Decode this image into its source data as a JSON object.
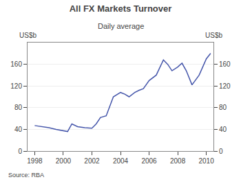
{
  "chart_data": {
    "type": "line",
    "title": "All FX Markets Turnover",
    "subtitle": "Daily average",
    "ylabel": "US$b",
    "y2label": "US$b",
    "annotations": [
      "Source: RBA"
    ],
    "color": "#4455aa",
    "x": [
      1998.0,
      1998.5,
      1999.0,
      1999.5,
      2000.0,
      2000.3,
      2000.6,
      2001.0,
      2001.5,
      2002.0,
      2002.3,
      2002.6,
      2003.0,
      2003.5,
      2004.0,
      2004.3,
      2004.6,
      2005.0,
      2005.3,
      2005.6,
      2006.0,
      2006.5,
      2007.0,
      2007.3,
      2007.6,
      2008.0,
      2008.3,
      2008.6,
      2009.0,
      2009.5,
      2010.0,
      2010.3
    ],
    "values": [
      47,
      45,
      43,
      40,
      38,
      36,
      50,
      45,
      43,
      42,
      50,
      62,
      65,
      100,
      108,
      105,
      100,
      108,
      112,
      115,
      130,
      140,
      168,
      160,
      148,
      155,
      162,
      148,
      122,
      140,
      170,
      180
    ],
    "xlim": [
      1997.5,
      2010.5
    ],
    "xticks": [
      1998,
      2000,
      2002,
      2004,
      2006,
      2008,
      2010
    ],
    "ylim": [
      0,
      200
    ],
    "yticks": [
      0,
      40,
      80,
      120,
      160
    ],
    "y2lim": [
      0,
      200
    ],
    "y2ticks": [
      0,
      40,
      80,
      120,
      160
    ],
    "grid": true
  }
}
